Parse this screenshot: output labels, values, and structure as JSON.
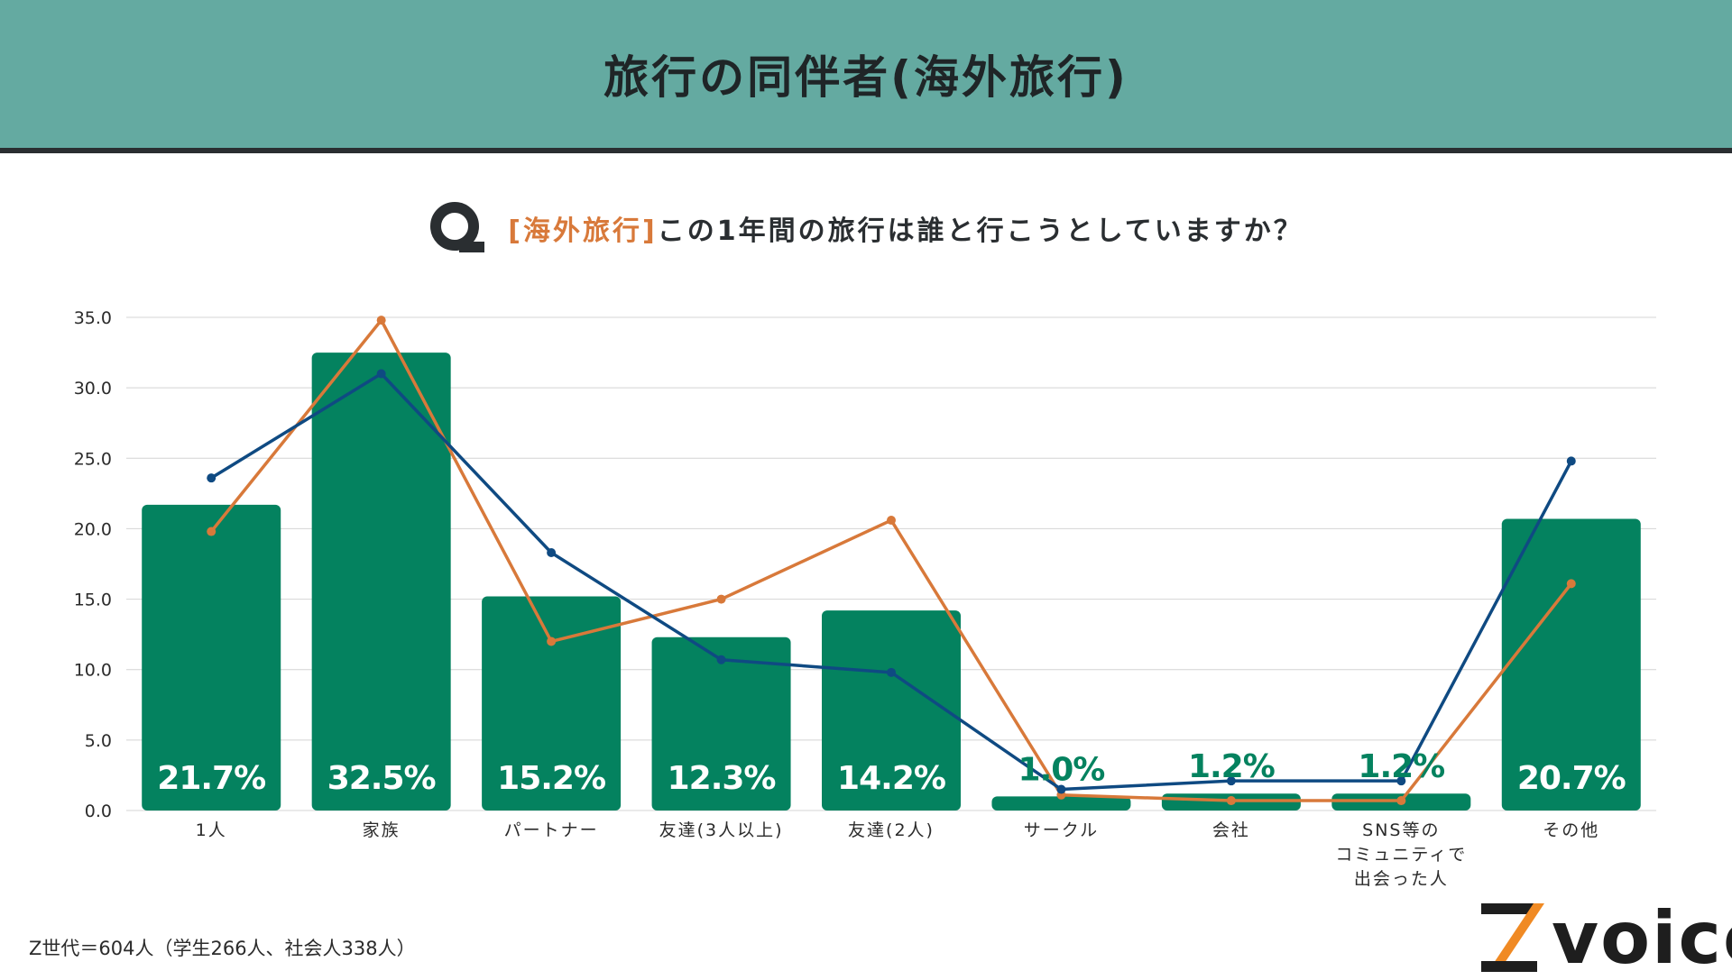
{
  "header": {
    "title": "旅行の同伴者(海外旅行)"
  },
  "question": {
    "accent": "[海外旅行]",
    "text": "この1年間の旅行は誰と行こうとしていますか？"
  },
  "footnote": "Z世代＝604人（学生266人、社会人338人）",
  "logo": {
    "text": "voice"
  },
  "colors": {
    "header_bg": "#64aaa1",
    "bar": "#04825f",
    "orange_line": "#d8793a",
    "blue_line": "#0f4a82",
    "question_accent": "#d8793a"
  },
  "chart_data": {
    "type": "bar",
    "categories": [
      "1人",
      "家族",
      "パートナー",
      "友達(3人以上)",
      "友達(2人)",
      "サークル",
      "会社",
      "SNS等の\nコミュニティで\n出会った人",
      "その他"
    ],
    "series": [
      {
        "type": "bar",
        "values": [
          21.7,
          32.5,
          15.2,
          12.3,
          14.2,
          1.0,
          1.2,
          1.2,
          20.7
        ]
      },
      {
        "type": "line",
        "color": "orange",
        "values": [
          19.8,
          34.8,
          12.0,
          15.0,
          20.6,
          1.1,
          0.7,
          0.7,
          16.1
        ]
      },
      {
        "type": "line",
        "color": "blue",
        "values": [
          23.6,
          31.0,
          18.3,
          10.7,
          9.8,
          1.5,
          2.1,
          2.1,
          24.8
        ]
      }
    ],
    "data_labels": [
      "21.7%",
      "32.5%",
      "15.2%",
      "12.3%",
      "14.2%",
      "1.0%",
      "1.2%",
      "1.2%",
      "20.7%"
    ],
    "y_ticks": [
      "35.0",
      "30.0",
      "25.0",
      "20.0",
      "15.0",
      "10.0",
      "5.0",
      "0.0"
    ],
    "ylim": [
      0,
      35
    ],
    "grid": true,
    "title": "",
    "xlabel": "",
    "ylabel": ""
  }
}
